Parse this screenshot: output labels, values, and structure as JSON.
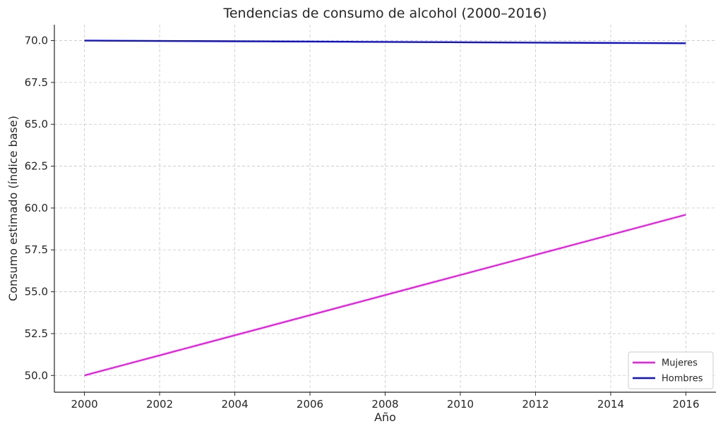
{
  "chart_data": {
    "type": "line",
    "title": "Tendencias de consumo de alcohol (2000–2016)",
    "xlabel": "Año",
    "ylabel": "Consumo estimado (índice base)",
    "xlim": [
      1999.2,
      2016.8
    ],
    "ylim": [
      49.0,
      70.95
    ],
    "xticks": [
      2000,
      2002,
      2004,
      2006,
      2008,
      2010,
      2012,
      2014,
      2016
    ],
    "yticks": [
      50.0,
      52.5,
      55.0,
      57.5,
      60.0,
      62.5,
      65.0,
      67.5,
      70.0
    ],
    "xtick_labels": [
      "2000",
      "2002",
      "2004",
      "2006",
      "2008",
      "2010",
      "2012",
      "2014",
      "2016"
    ],
    "ytick_labels": [
      "50.0",
      "52.5",
      "55.0",
      "57.5",
      "60.0",
      "62.5",
      "65.0",
      "67.5",
      "70.0"
    ],
    "grid": true,
    "legend_position": "bottom-right",
    "x": [
      2000,
      2001,
      2002,
      2003,
      2004,
      2005,
      2006,
      2007,
      2008,
      2009,
      2010,
      2011,
      2012,
      2013,
      2014,
      2015,
      2016
    ],
    "series": [
      {
        "name": "Mujeres",
        "color": "#ee1ee9",
        "values": [
          50.0,
          50.6,
          51.2,
          51.8,
          52.4,
          53.0,
          53.6,
          54.2,
          54.8,
          55.4,
          56.0,
          56.6,
          57.2,
          57.8,
          58.4,
          59.0,
          59.6
        ]
      },
      {
        "name": "Hombres",
        "color": "#1212cc",
        "values": [
          70.0,
          69.99,
          69.98,
          69.97,
          69.96,
          69.95,
          69.94,
          69.93,
          69.92,
          69.91,
          69.9,
          69.89,
          69.88,
          69.87,
          69.86,
          69.85,
          69.84
        ]
      }
    ]
  }
}
